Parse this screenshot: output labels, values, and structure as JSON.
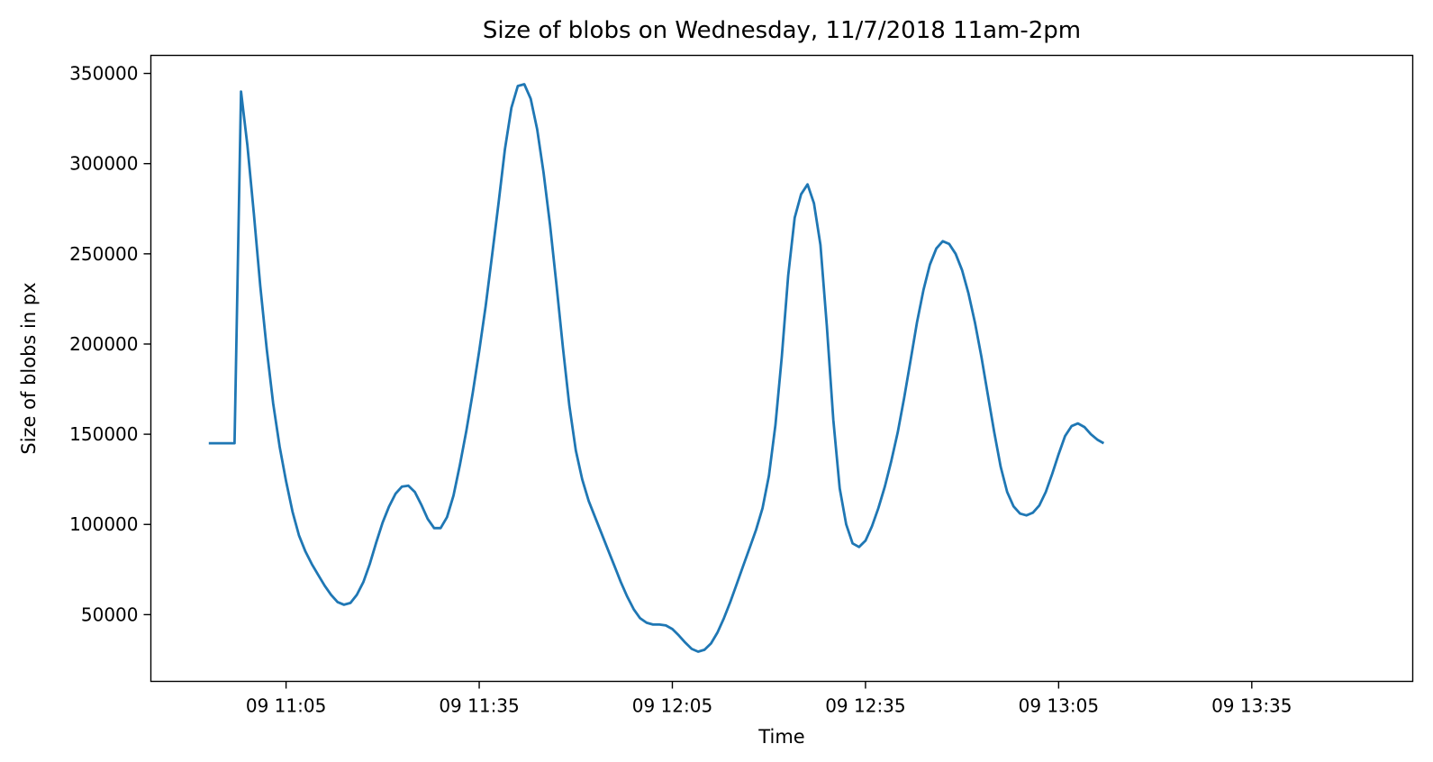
{
  "chart_data": {
    "type": "line",
    "title": "Size of blobs on Wednesday, 11/7/2018 11am-2pm",
    "xlabel": "Time",
    "ylabel": "Size of blobs in px",
    "grid": false,
    "legend": "none",
    "color": "#1f77b4",
    "xlim": [
      "10:44",
      "14:00"
    ],
    "ylim": [
      13000,
      360000
    ],
    "x_ticks": [
      {
        "value": "11:05",
        "label": "09 11:05"
      },
      {
        "value": "11:35",
        "label": "09 11:35"
      },
      {
        "value": "12:05",
        "label": "09 12:05"
      },
      {
        "value": "12:35",
        "label": "09 12:35"
      },
      {
        "value": "13:05",
        "label": "09 13:05"
      },
      {
        "value": "13:35",
        "label": "09 13:35"
      }
    ],
    "y_ticks": [
      {
        "value": 50000,
        "label": "50000"
      },
      {
        "value": 100000,
        "label": "100000"
      },
      {
        "value": 150000,
        "label": "150000"
      },
      {
        "value": 200000,
        "label": "200000"
      },
      {
        "value": 250000,
        "label": "250000"
      },
      {
        "value": 300000,
        "label": "300000"
      },
      {
        "value": 350000,
        "label": "350000"
      }
    ],
    "series": [
      {
        "points": [
          [
            "10:53",
            145000
          ],
          [
            "10:57",
            145000
          ],
          [
            "10:58",
            340000
          ],
          [
            "10:59",
            310000
          ],
          [
            "11:00",
            272000
          ],
          [
            "11:01",
            232000
          ],
          [
            "11:02",
            197000
          ],
          [
            "11:03",
            167000
          ],
          [
            "11:04",
            143000
          ],
          [
            "11:05",
            124000
          ],
          [
            "11:06",
            107000
          ],
          [
            "11:07",
            94000
          ],
          [
            "11:08",
            85000
          ],
          [
            "11:09",
            78000
          ],
          [
            "11:10",
            72000
          ],
          [
            "11:11",
            66000
          ],
          [
            "11:12",
            61000
          ],
          [
            "11:13",
            57000
          ],
          [
            "11:14",
            55500
          ],
          [
            "11:15",
            56500
          ],
          [
            "11:16",
            61000
          ],
          [
            "11:17",
            68000
          ],
          [
            "11:18",
            78000
          ],
          [
            "11:19",
            90000
          ],
          [
            "11:20",
            101000
          ],
          [
            "11:21",
            110000
          ],
          [
            "11:22",
            117000
          ],
          [
            "11:23",
            121000
          ],
          [
            "11:24",
            121500
          ],
          [
            "11:25",
            118000
          ],
          [
            "11:26",
            111000
          ],
          [
            "11:27",
            103000
          ],
          [
            "11:28",
            98000
          ],
          [
            "11:29",
            98000
          ],
          [
            "11:30",
            104000
          ],
          [
            "11:31",
            116000
          ],
          [
            "11:32",
            133000
          ],
          [
            "11:33",
            152000
          ],
          [
            "11:34",
            173000
          ],
          [
            "11:35",
            196000
          ],
          [
            "11:36",
            221000
          ],
          [
            "11:37",
            249000
          ],
          [
            "11:38",
            278000
          ],
          [
            "11:39",
            308000
          ],
          [
            "11:40",
            331000
          ],
          [
            "11:41",
            343000
          ],
          [
            "11:42",
            344000
          ],
          [
            "11:43",
            336000
          ],
          [
            "11:44",
            319000
          ],
          [
            "11:45",
            295000
          ],
          [
            "11:46",
            266000
          ],
          [
            "11:47",
            233000
          ],
          [
            "11:48",
            198000
          ],
          [
            "11:49",
            166000
          ],
          [
            "11:50",
            141000
          ],
          [
            "11:51",
            125000
          ],
          [
            "11:52",
            113000
          ],
          [
            "11:53",
            104000
          ],
          [
            "11:54",
            95000
          ],
          [
            "11:55",
            86000
          ],
          [
            "11:56",
            77000
          ],
          [
            "11:57",
            68000
          ],
          [
            "11:58",
            60000
          ],
          [
            "11:59",
            53000
          ],
          [
            "12:00",
            48000
          ],
          [
            "12:01",
            45500
          ],
          [
            "12:02",
            44500
          ],
          [
            "12:03",
            44500
          ],
          [
            "12:04",
            44000
          ],
          [
            "12:05",
            42000
          ],
          [
            "12:06",
            38500
          ],
          [
            "12:07",
            34500
          ],
          [
            "12:08",
            31000
          ],
          [
            "12:09",
            29500
          ],
          [
            "12:10",
            30500
          ],
          [
            "12:11",
            34000
          ],
          [
            "12:12",
            40000
          ],
          [
            "12:13",
            48000
          ],
          [
            "12:14",
            57000
          ],
          [
            "12:15",
            67000
          ],
          [
            "12:16",
            77000
          ],
          [
            "12:17",
            87000
          ],
          [
            "12:18",
            97000
          ],
          [
            "12:19",
            109000
          ],
          [
            "12:20",
            127000
          ],
          [
            "12:21",
            155000
          ],
          [
            "12:22",
            193000
          ],
          [
            "12:23",
            238000
          ],
          [
            "12:24",
            270000
          ],
          [
            "12:25",
            283000
          ],
          [
            "12:26",
            288500
          ],
          [
            "12:27",
            278000
          ],
          [
            "12:28",
            255000
          ],
          [
            "12:29",
            210000
          ],
          [
            "12:30",
            158000
          ],
          [
            "12:31",
            120000
          ],
          [
            "12:32",
            100000
          ],
          [
            "12:33",
            89500
          ],
          [
            "12:34",
            87500
          ],
          [
            "12:35",
            91000
          ],
          [
            "12:36",
            99000
          ],
          [
            "12:37",
            109000
          ],
          [
            "12:38",
            121000
          ],
          [
            "12:39",
            135000
          ],
          [
            "12:40",
            151000
          ],
          [
            "12:41",
            170000
          ],
          [
            "12:42",
            191000
          ],
          [
            "12:43",
            212000
          ],
          [
            "12:44",
            230000
          ],
          [
            "12:45",
            244000
          ],
          [
            "12:46",
            253000
          ],
          [
            "12:47",
            257000
          ],
          [
            "12:48",
            255500
          ],
          [
            "12:49",
            250000
          ],
          [
            "12:50",
            241000
          ],
          [
            "12:51",
            228000
          ],
          [
            "12:52",
            212000
          ],
          [
            "12:53",
            193000
          ],
          [
            "12:54",
            172000
          ],
          [
            "12:55",
            151000
          ],
          [
            "12:56",
            132000
          ],
          [
            "12:57",
            118000
          ],
          [
            "12:58",
            110000
          ],
          [
            "12:59",
            106000
          ],
          [
            "13:00",
            105000
          ],
          [
            "13:01",
            106500
          ],
          [
            "13:02",
            110500
          ],
          [
            "13:03",
            118000
          ],
          [
            "13:04",
            128000
          ],
          [
            "13:05",
            139000
          ],
          [
            "13:06",
            149000
          ],
          [
            "13:07",
            154500
          ],
          [
            "13:08",
            156000
          ],
          [
            "13:09",
            154000
          ],
          [
            "13:10",
            150000
          ],
          [
            "13:11",
            147000
          ],
          [
            "13:12",
            145000
          ]
        ]
      }
    ]
  }
}
